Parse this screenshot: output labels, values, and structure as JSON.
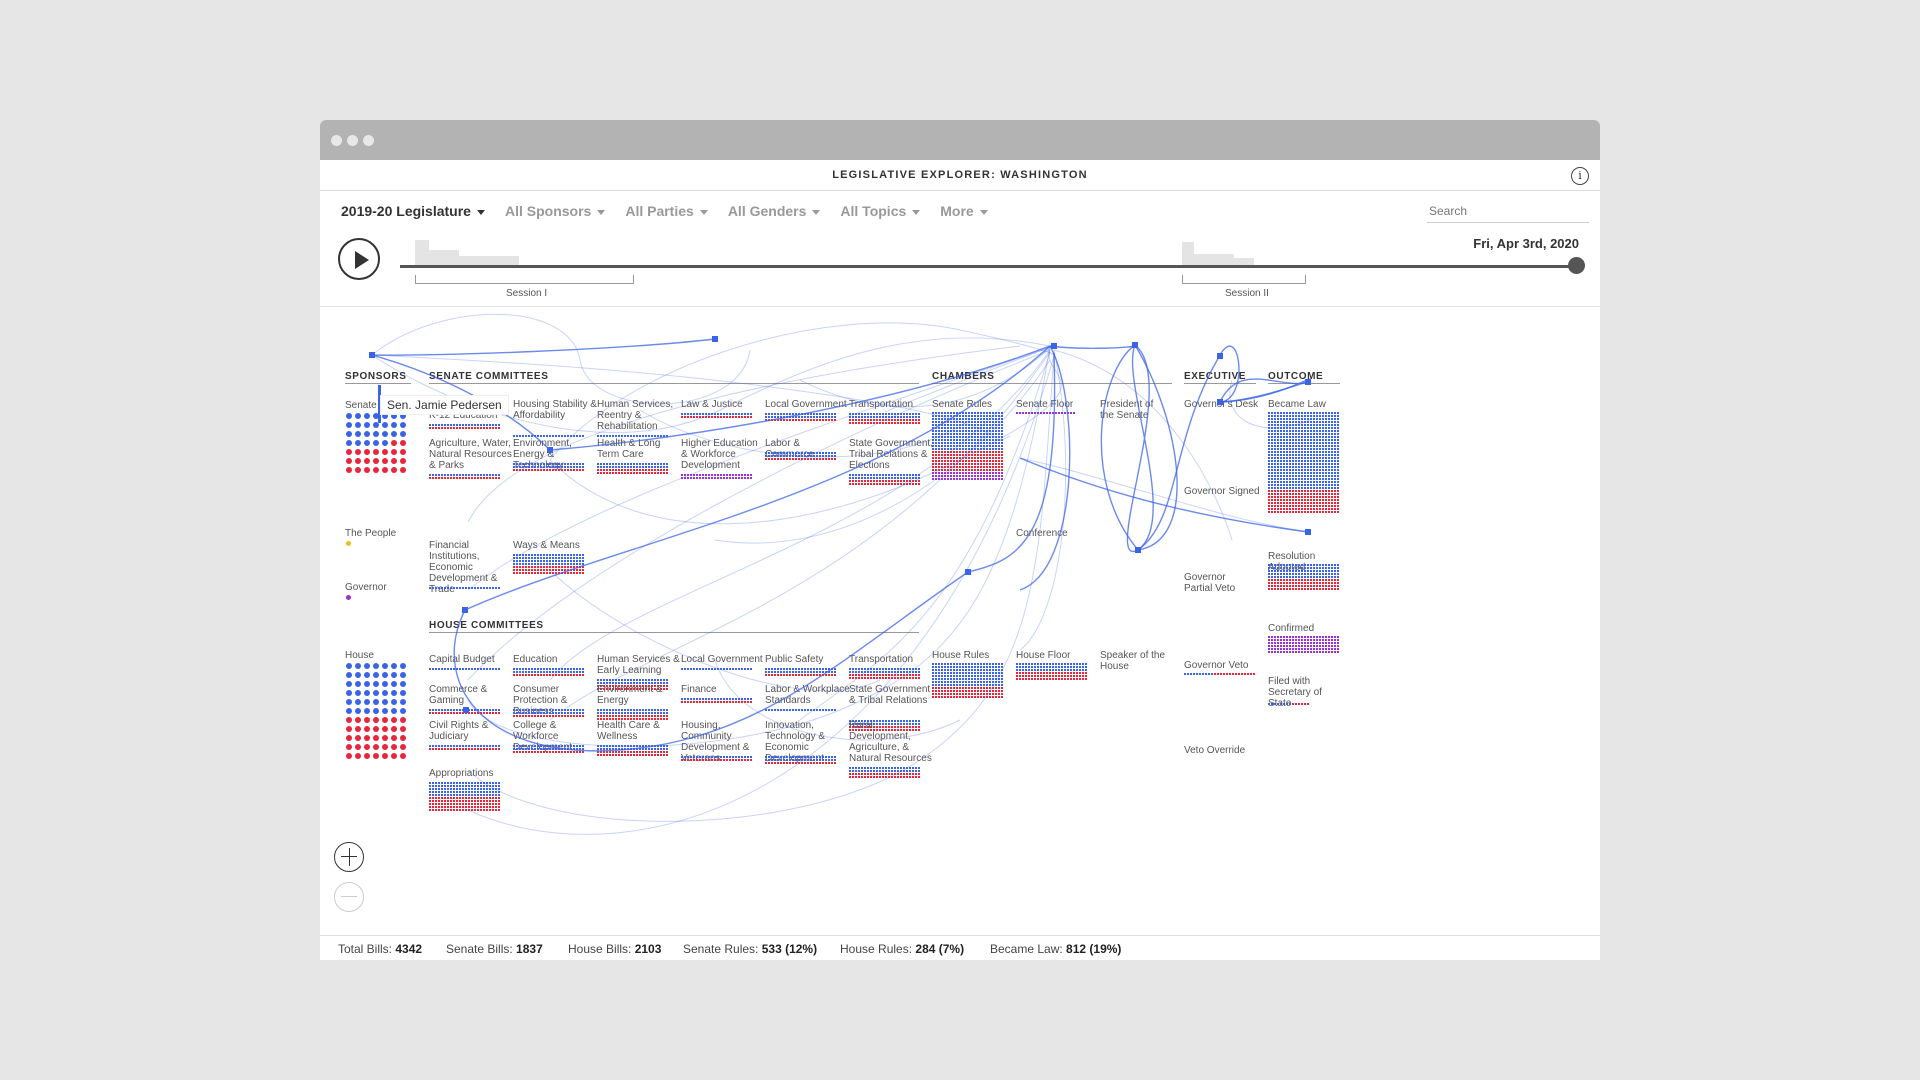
{
  "window": {
    "dots": [
      "#e8e8e8",
      "#e8e8e8",
      "#e8e8e8"
    ]
  },
  "app": {
    "title": "LEGISLATIVE EXPLORER: WASHINGTON",
    "info_icon": "info-icon"
  },
  "filters": {
    "legislature": "2019-20 Legislature",
    "sponsors": "All Sponsors",
    "parties": "All Parties",
    "genders": "All Genders",
    "topics": "All Topics",
    "more": "More"
  },
  "search": {
    "placeholder": "Search"
  },
  "timeline": {
    "date": "Fri, Apr 3rd, 2020",
    "session1": "Session I",
    "session2": "Session II",
    "play_icon": "play-icon"
  },
  "sections": {
    "sponsors": "SPONSORS",
    "senate_committees": "SENATE COMMITTEES",
    "house_committees": "HOUSE COMMITTEES",
    "chambers": "CHAMBERS",
    "executive": "EXECUTIVE",
    "outcome": "OUTCOME"
  },
  "tooltip": {
    "sponsor": "Sen. Jamie Pedersen"
  },
  "sponsors": {
    "senate": "Senate",
    "people": "The People",
    "governor": "Governor",
    "house": "House"
  },
  "senate_committees": [
    {
      "label": "Early Learning & K-12 Education",
      "mix": "br"
    },
    {
      "label": "Housing Stability & Affordability",
      "mix": "b"
    },
    {
      "label": "Human Services, Reentry & Rehabilitation",
      "mix": "b"
    },
    {
      "label": "Law & Justice",
      "mix": "br"
    },
    {
      "label": "Local Government",
      "mix": "br"
    },
    {
      "label": "Transportation",
      "mix": "br"
    },
    {
      "label": "Agriculture, Water, Natural Resources & Parks",
      "mix": "br"
    },
    {
      "label": "Environment, Energy & Technology",
      "mix": "br"
    },
    {
      "label": "Health & Long Term Care",
      "mix": "br"
    },
    {
      "label": "Higher Education & Workforce Development",
      "mix": "bp"
    },
    {
      "label": "Labor & Commerce",
      "mix": "br"
    },
    {
      "label": "State Government, Tribal Relations & Elections",
      "mix": "br"
    },
    {
      "label": "Financial Institutions, Economic Development & Trade",
      "mix": "b"
    },
    {
      "label": "Ways & Means",
      "mix": "br"
    }
  ],
  "house_committees": [
    {
      "label": "Capital Budget",
      "mix": "b"
    },
    {
      "label": "Education",
      "mix": "br"
    },
    {
      "label": "Human Services & Early Learning",
      "mix": "br"
    },
    {
      "label": "Local Government",
      "mix": "b"
    },
    {
      "label": "Public Safety",
      "mix": "br"
    },
    {
      "label": "Transportation",
      "mix": "br"
    },
    {
      "label": "Commerce & Gaming",
      "mix": "br"
    },
    {
      "label": "Consumer Protection & Business",
      "mix": "br"
    },
    {
      "label": "Environment & Energy",
      "mix": "br"
    },
    {
      "label": "Finance",
      "mix": "br"
    },
    {
      "label": "Labor & Workplace Standards",
      "mix": "b"
    },
    {
      "label": "State Government & Tribal Relations",
      "mix": "br"
    },
    {
      "label": "Civil Rights & Judiciary",
      "mix": "br"
    },
    {
      "label": "College & Workforce Development",
      "mix": "br"
    },
    {
      "label": "Health Care & Wellness",
      "mix": "br"
    },
    {
      "label": "Housing, Community Development & Veterans",
      "mix": "br"
    },
    {
      "label": "Innovation, Technology & Economic Development",
      "mix": "br"
    },
    {
      "label": "Rural Development, Agriculture, & Natural Resources",
      "mix": "br"
    },
    {
      "label": "Appropriations",
      "mix": "br"
    }
  ],
  "chambers": {
    "senate_rules": "Senate Rules",
    "senate_floor": "Senate Floor",
    "president": "President of the Senate",
    "conference": "Conference",
    "house_rules": "House Rules",
    "house_floor": "House Floor",
    "speaker": "Speaker of the House"
  },
  "executive": {
    "desk": "Governor's Desk",
    "signed": "Governor Signed",
    "partial_veto": "Governor Partial Veto",
    "veto": "Governor Veto",
    "override": "Veto Override"
  },
  "outcome": {
    "became_law": "Became Law",
    "resolution": "Resolution Adopted",
    "confirmed": "Confirmed",
    "filed": "Filed with Secretary of State"
  },
  "colors": {
    "dem": "#3b63e8",
    "rep": "#e8253b",
    "purple": "#9b30d9",
    "people": "#e8c21a",
    "flow": "#3b63e8"
  },
  "zoom": {
    "in_icon": "zoom-in-icon",
    "out_icon": "zoom-out-icon"
  },
  "footer": {
    "total_label": "Total Bills:",
    "total": "4342",
    "senate_label": "Senate Bills:",
    "senate": "1837",
    "house_label": "House Bills:",
    "house": "2103",
    "srules_label": "Senate Rules:",
    "srules": "533 (12%)",
    "hrules_label": "House Rules:",
    "hrules": "284 (7%)",
    "law_label": "Became Law:",
    "law": "812 (19%)"
  }
}
